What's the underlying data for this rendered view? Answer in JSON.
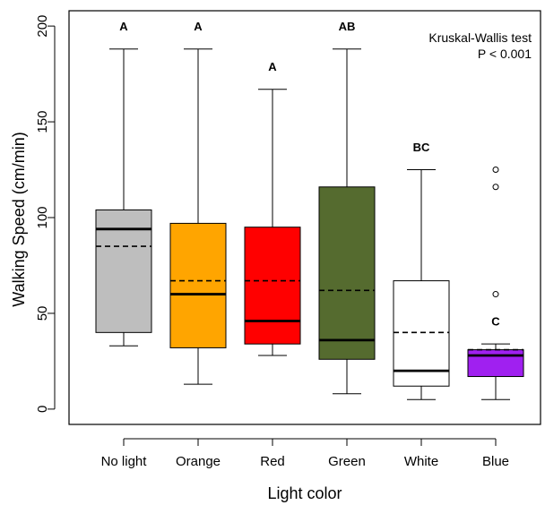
{
  "chart_data": {
    "type": "boxplot",
    "xlabel": "Light color",
    "ylabel": "Walking Speed (cm/min)",
    "ylim": [
      -8,
      208
    ],
    "y_ticks": [
      "0",
      "50",
      "100",
      "150",
      "200"
    ],
    "annotation": [
      "Kruskal-Wallis test",
      "P < 0.001"
    ],
    "median_line": "solid",
    "mean_line": "dashed",
    "categories": [
      "No light",
      "Orange",
      "Red",
      "Green",
      "White",
      "Blue"
    ],
    "boxes": [
      {
        "name": "No light",
        "color": "#bebebe",
        "whisker_low": 33,
        "q1": 40,
        "median": 94,
        "mean": 85,
        "q3": 104,
        "whisker_high": 188,
        "letter": "A",
        "letter_y": 200,
        "outliers": []
      },
      {
        "name": "Orange",
        "color": "#ffa500",
        "whisker_low": 13,
        "q1": 32,
        "median": 60,
        "mean": 67,
        "q3": 97,
        "whisker_high": 188,
        "letter": "A",
        "letter_y": 200,
        "outliers": []
      },
      {
        "name": "Red",
        "color": "#ff0000",
        "whisker_low": 28,
        "q1": 34,
        "median": 46,
        "mean": 67,
        "q3": 95,
        "whisker_high": 167,
        "letter": "A",
        "letter_y": 179,
        "outliers": []
      },
      {
        "name": "Green",
        "color": "#556b2f",
        "whisker_low": 8,
        "q1": 26,
        "median": 36,
        "mean": 62,
        "q3": 116,
        "whisker_high": 188,
        "letter": "AB",
        "letter_y": 200,
        "outliers": []
      },
      {
        "name": "White",
        "color": "#ffffff",
        "whisker_low": 5,
        "q1": 12,
        "median": 20,
        "mean": 40,
        "q3": 67,
        "whisker_high": 125,
        "letter": "BC",
        "letter_y": 137,
        "outliers": []
      },
      {
        "name": "Blue",
        "color": "#a020f0",
        "whisker_low": 5,
        "q1": 17,
        "median": 28,
        "mean": 31,
        "q3": 31,
        "whisker_high": 34,
        "letter": "C",
        "letter_y": 46,
        "outliers": [
          60,
          116,
          125
        ]
      }
    ]
  }
}
